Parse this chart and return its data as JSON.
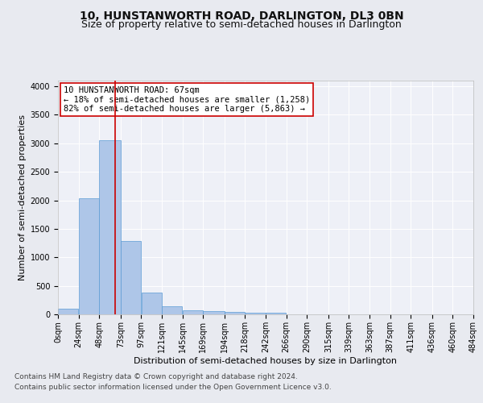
{
  "title": "10, HUNSTANWORTH ROAD, DARLINGTON, DL3 0BN",
  "subtitle": "Size of property relative to semi-detached houses in Darlington",
  "xlabel": "Distribution of semi-detached houses by size in Darlington",
  "ylabel": "Number of semi-detached properties",
  "bin_labels": [
    "0sqm",
    "24sqm",
    "48sqm",
    "73sqm",
    "97sqm",
    "121sqm",
    "145sqm",
    "169sqm",
    "194sqm",
    "218sqm",
    "242sqm",
    "266sqm",
    "290sqm",
    "315sqm",
    "339sqm",
    "363sqm",
    "387sqm",
    "411sqm",
    "436sqm",
    "460sqm",
    "484sqm"
  ],
  "bar_heights": [
    100,
    2030,
    3050,
    1290,
    375,
    145,
    75,
    50,
    45,
    35,
    30,
    0,
    0,
    0,
    0,
    0,
    0,
    0,
    0,
    0
  ],
  "bar_left_edges": [
    0,
    24,
    48,
    73,
    97,
    121,
    145,
    169,
    194,
    218,
    242,
    266,
    290,
    315,
    339,
    363,
    387,
    411,
    436,
    460
  ],
  "bar_widths": [
    24,
    24,
    25,
    24,
    24,
    24,
    24,
    25,
    24,
    24,
    24,
    24,
    25,
    24,
    24,
    24,
    24,
    25,
    24,
    24
  ],
  "bar_color": "#aec6e8",
  "bar_edge_color": "#5b9bd5",
  "property_size": 67,
  "vline_color": "#cc0000",
  "annotation_text": "10 HUNSTANWORTH ROAD: 67sqm\n← 18% of semi-detached houses are smaller (1,258)\n82% of semi-detached houses are larger (5,863) →",
  "annotation_box_color": "#ffffff",
  "annotation_box_edge_color": "#cc0000",
  "ylim": [
    0,
    4100
  ],
  "xlim": [
    0,
    484
  ],
  "yticks": [
    0,
    500,
    1000,
    1500,
    2000,
    2500,
    3000,
    3500,
    4000
  ],
  "bg_color": "#e8eaf0",
  "plot_bg_color": "#eef0f7",
  "grid_color": "#ffffff",
  "footer_line1": "Contains HM Land Registry data © Crown copyright and database right 2024.",
  "footer_line2": "Contains public sector information licensed under the Open Government Licence v3.0.",
  "title_fontsize": 10,
  "subtitle_fontsize": 9,
  "axis_label_fontsize": 8,
  "tick_fontsize": 7,
  "annotation_fontsize": 7.5,
  "footer_fontsize": 6.5
}
